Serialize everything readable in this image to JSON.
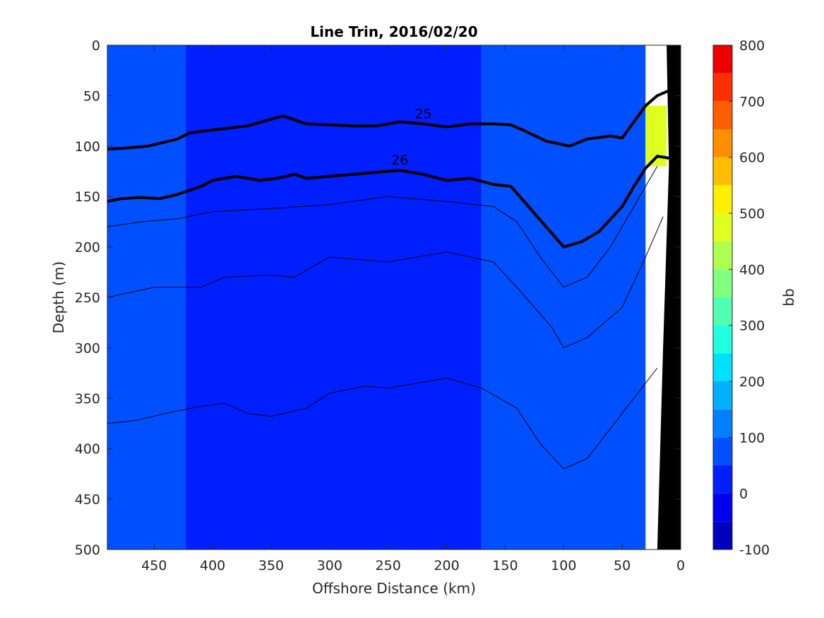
{
  "chart_data": {
    "type": "heatmap",
    "subtype": "filled-contour-section",
    "title": "Line Trin, 2016/02/20",
    "xlabel": "Offshore Distance (km)",
    "ylabel": "Depth (m)",
    "colorbar_label": "bb",
    "x_reversed": true,
    "y_reversed": true,
    "xlim": [
      0,
      490
    ],
    "ylim": [
      0,
      500
    ],
    "x_ticks": [
      450,
      400,
      350,
      300,
      250,
      200,
      150,
      100,
      50,
      0
    ],
    "y_ticks": [
      0,
      50,
      100,
      150,
      200,
      250,
      300,
      350,
      400,
      450,
      500
    ],
    "colorbar": {
      "range": [
        -100,
        800
      ],
      "ticks": [
        -100,
        0,
        100,
        200,
        300,
        400,
        500,
        600,
        700,
        800
      ],
      "levels": [
        -100,
        -50,
        0,
        50,
        100,
        150,
        200,
        250,
        300,
        350,
        400,
        450,
        500,
        550,
        600,
        650,
        700,
        750,
        800
      ],
      "colors": [
        "#00008f",
        "#0000bf",
        "#0000ef",
        "#001fff",
        "#0050ff",
        "#0080ff",
        "#00afff",
        "#00dfff",
        "#20ffdf",
        "#50ffaf",
        "#80ff80",
        "#afff50",
        "#dfff20",
        "#ffef00",
        "#ffbf00",
        "#ff8f00",
        "#ff5f00",
        "#ff2f00",
        "#ef0000",
        "#bf0000",
        "#8f0000"
      ]
    },
    "field_regions": [
      {
        "name": "offshore-band",
        "x": [
          490,
          423
        ],
        "level_value": 75
      },
      {
        "name": "central-low",
        "x": [
          423,
          170
        ],
        "level_value": 25
      },
      {
        "name": "nearshore-band",
        "x": [
          170,
          30
        ],
        "level_value": 75
      },
      {
        "name": "shelf-high",
        "x": [
          30,
          12
        ],
        "y": [
          60,
          120
        ],
        "level_value": 460
      }
    ],
    "density_contours": [
      {
        "label": "25",
        "bold": true,
        "points": [
          [
            490,
            103
          ],
          [
            475,
            102
          ],
          [
            455,
            100
          ],
          [
            430,
            93
          ],
          [
            420,
            87
          ],
          [
            400,
            84
          ],
          [
            370,
            80
          ],
          [
            355,
            75
          ],
          [
            340,
            70
          ],
          [
            320,
            78
          ],
          [
            300,
            79
          ],
          [
            280,
            80
          ],
          [
            260,
            80
          ],
          [
            240,
            76
          ],
          [
            220,
            78
          ],
          [
            200,
            81
          ],
          [
            180,
            78
          ],
          [
            160,
            78
          ],
          [
            145,
            79
          ],
          [
            135,
            84
          ],
          [
            115,
            95
          ],
          [
            95,
            100
          ],
          [
            80,
            93
          ],
          [
            60,
            90
          ],
          [
            50,
            92
          ],
          [
            30,
            60
          ],
          [
            20,
            50
          ],
          [
            10,
            45
          ]
        ]
      },
      {
        "label": "26",
        "bold": true,
        "points": [
          [
            490,
            155
          ],
          [
            478,
            152
          ],
          [
            462,
            151
          ],
          [
            445,
            152
          ],
          [
            430,
            148
          ],
          [
            410,
            140
          ],
          [
            400,
            134
          ],
          [
            380,
            130
          ],
          [
            360,
            134
          ],
          [
            345,
            132
          ],
          [
            330,
            128
          ],
          [
            320,
            132
          ],
          [
            300,
            130
          ],
          [
            280,
            128
          ],
          [
            260,
            126
          ],
          [
            240,
            124
          ],
          [
            220,
            128
          ],
          [
            200,
            134
          ],
          [
            180,
            132
          ],
          [
            160,
            138
          ],
          [
            145,
            140
          ],
          [
            130,
            160
          ],
          [
            115,
            180
          ],
          [
            100,
            200
          ],
          [
            85,
            195
          ],
          [
            70,
            185
          ],
          [
            50,
            160
          ],
          [
            40,
            140
          ],
          [
            30,
            122
          ],
          [
            20,
            110
          ],
          [
            10,
            112
          ]
        ]
      },
      {
        "label": "",
        "bold": false,
        "points": [
          [
            490,
            180
          ],
          [
            460,
            175
          ],
          [
            430,
            172
          ],
          [
            400,
            165
          ],
          [
            350,
            162
          ],
          [
            300,
            158
          ],
          [
            250,
            150
          ],
          [
            200,
            155
          ],
          [
            160,
            160
          ],
          [
            140,
            175
          ],
          [
            120,
            210
          ],
          [
            100,
            240
          ],
          [
            80,
            230
          ],
          [
            60,
            200
          ],
          [
            40,
            160
          ],
          [
            20,
            120
          ]
        ]
      },
      {
        "label": "",
        "bold": false,
        "points": [
          [
            490,
            250
          ],
          [
            450,
            240
          ],
          [
            410,
            240
          ],
          [
            390,
            230
          ],
          [
            350,
            228
          ],
          [
            330,
            230
          ],
          [
            300,
            210
          ],
          [
            250,
            215
          ],
          [
            200,
            205
          ],
          [
            160,
            215
          ],
          [
            140,
            240
          ],
          [
            110,
            280
          ],
          [
            100,
            300
          ],
          [
            80,
            290
          ],
          [
            50,
            260
          ],
          [
            30,
            210
          ],
          [
            15,
            170
          ]
        ]
      },
      {
        "label": "",
        "bold": false,
        "points": [
          [
            490,
            375
          ],
          [
            465,
            372
          ],
          [
            440,
            365
          ],
          [
            410,
            358
          ],
          [
            390,
            355
          ],
          [
            370,
            365
          ],
          [
            350,
            368
          ],
          [
            320,
            360
          ],
          [
            300,
            345
          ],
          [
            270,
            338
          ],
          [
            250,
            340
          ],
          [
            200,
            330
          ],
          [
            170,
            340
          ],
          [
            140,
            360
          ],
          [
            120,
            395
          ],
          [
            100,
            420
          ],
          [
            80,
            410
          ],
          [
            60,
            380
          ],
          [
            40,
            350
          ],
          [
            20,
            320
          ]
        ]
      }
    ],
    "bathymetry": {
      "color": "#000000",
      "points": [
        [
          12,
          0
        ],
        [
          10,
          120
        ],
        [
          15,
          300
        ],
        [
          20,
          500
        ],
        [
          0,
          500
        ],
        [
          0,
          0
        ]
      ]
    },
    "colors": {
      "text": "#262626",
      "axes": "#262626",
      "contour": "#000000",
      "land": "#000000"
    }
  }
}
